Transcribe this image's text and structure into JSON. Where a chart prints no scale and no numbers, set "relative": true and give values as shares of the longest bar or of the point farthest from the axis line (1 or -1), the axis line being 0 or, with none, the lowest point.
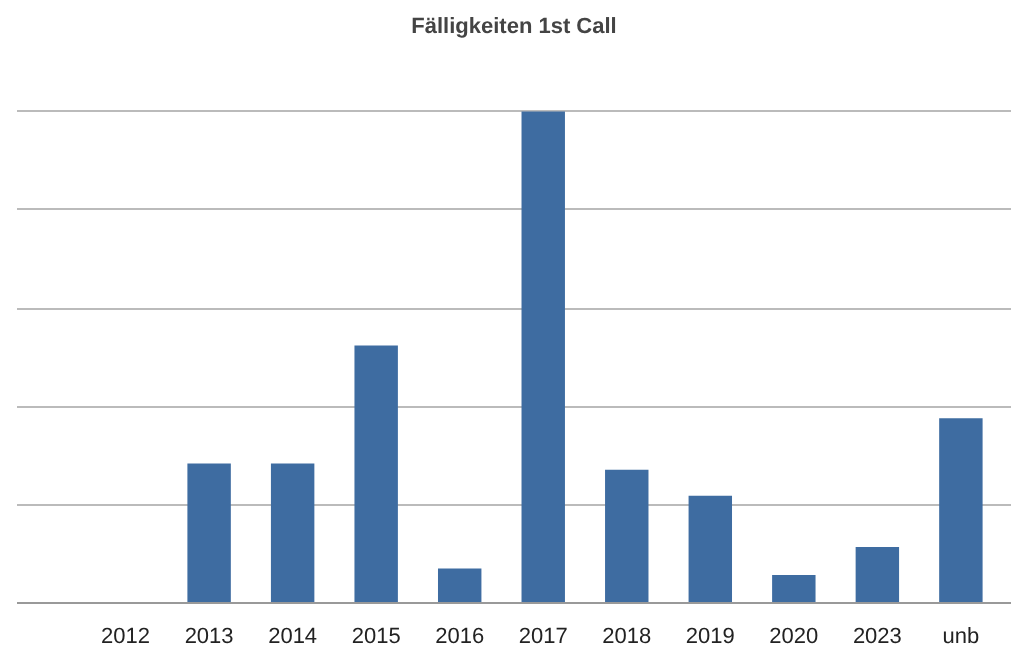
{
  "chart_data": {
    "type": "bar",
    "title": "Fälligkeiten 1st Call",
    "relative": true,
    "grid": "y",
    "color": "#3e6ca1",
    "categories": [
      "2012",
      "2013",
      "2014",
      "2015",
      "2016",
      "2017",
      "2018",
      "2019",
      "2020",
      "2023",
      "unb"
    ],
    "values": [
      0,
      0.284,
      0.284,
      0.524,
      0.07,
      1,
      0.271,
      0.218,
      0.057,
      0.114,
      0.376
    ]
  }
}
